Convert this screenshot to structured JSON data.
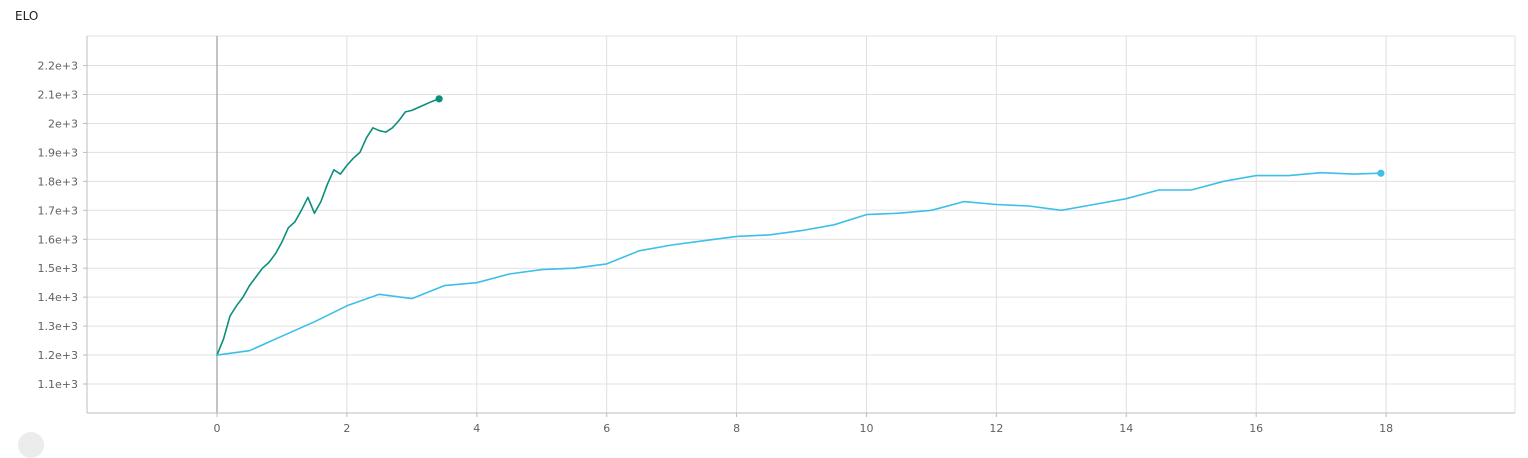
{
  "page": {
    "title": "ELO"
  },
  "colors": {
    "series_fast": "#0b8f7a",
    "series_slow": "#3dbfe8",
    "grid": "#e0e0e0",
    "zero_axis": "#9e9e9e",
    "tick_text": "#616161"
  },
  "chart_data": {
    "type": "line",
    "title": "ELO",
    "xlabel": "",
    "ylabel": "",
    "xlim": [
      -2,
      20
    ],
    "ylim": [
      1000,
      2250
    ],
    "x_ticks": [
      0,
      2,
      4,
      6,
      8,
      10,
      12,
      14,
      16,
      18
    ],
    "y_ticks": [
      {
        "value": 1100,
        "label": "1.1e+3"
      },
      {
        "value": 1200,
        "label": "1.2e+3"
      },
      {
        "value": 1300,
        "label": "1.3e+3"
      },
      {
        "value": 1400,
        "label": "1.4e+3"
      },
      {
        "value": 1500,
        "label": "1.5e+3"
      },
      {
        "value": 1600,
        "label": "1.6e+3"
      },
      {
        "value": 1700,
        "label": "1.7e+3"
      },
      {
        "value": 1800,
        "label": "1.8e+3"
      },
      {
        "value": 1900,
        "label": "1.9e+3"
      },
      {
        "value": 2000,
        "label": "2e+3"
      },
      {
        "value": 2100,
        "label": "2.1e+3"
      },
      {
        "value": 2200,
        "label": "2.2e+3"
      }
    ],
    "grid": true,
    "legend": "none",
    "series": [
      {
        "color": "#0b8f7a",
        "x": [
          0,
          0.1,
          0.2,
          0.3,
          0.4,
          0.5,
          0.6,
          0.7,
          0.8,
          0.9,
          1.0,
          1.1,
          1.2,
          1.3,
          1.4,
          1.5,
          1.6,
          1.7,
          1.8,
          1.9,
          2.0,
          2.1,
          2.2,
          2.3,
          2.4,
          2.5,
          2.6,
          2.7,
          2.8,
          2.9,
          3.0,
          3.1,
          3.2,
          3.3,
          3.42
        ],
        "y": [
          1200,
          1255,
          1335,
          1370,
          1400,
          1440,
          1470,
          1500,
          1520,
          1550,
          1590,
          1640,
          1660,
          1700,
          1745,
          1690,
          1730,
          1790,
          1840,
          1825,
          1855,
          1880,
          1900,
          1950,
          1985,
          1975,
          1970,
          1985,
          2010,
          2040,
          2045,
          2055,
          2065,
          2075,
          2085
        ]
      },
      {
        "color": "#3dbfe8",
        "x": [
          0,
          0.5,
          1.0,
          1.5,
          2.0,
          2.5,
          3.0,
          3.5,
          4.0,
          4.5,
          5.0,
          5.5,
          6.0,
          6.5,
          7.0,
          7.5,
          8.0,
          8.5,
          9.0,
          9.5,
          10.0,
          10.5,
          11.0,
          11.5,
          12.0,
          12.5,
          13.0,
          13.5,
          14.0,
          14.5,
          15.0,
          15.5,
          16.0,
          16.5,
          17.0,
          17.5,
          17.92
        ],
        "y": [
          1200,
          1215,
          1265,
          1315,
          1370,
          1410,
          1395,
          1440,
          1450,
          1480,
          1495,
          1500,
          1515,
          1560,
          1580,
          1595,
          1610,
          1615,
          1630,
          1650,
          1685,
          1690,
          1700,
          1730,
          1720,
          1715,
          1700,
          1720,
          1740,
          1770,
          1770,
          1800,
          1820,
          1820,
          1830,
          1825,
          1828
        ]
      }
    ]
  }
}
